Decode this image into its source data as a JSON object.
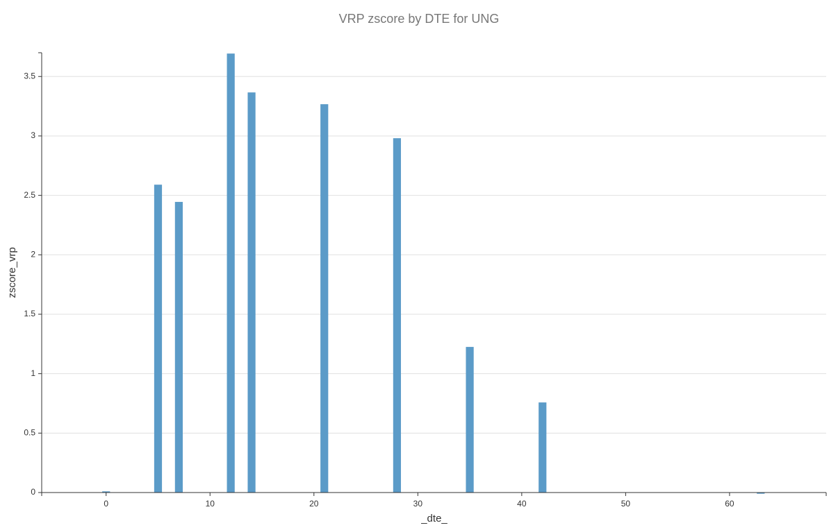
{
  "chart_data": {
    "type": "bar",
    "title": "VRP zscore by DTE for UNG",
    "x_label": "_dte_",
    "y_label": "zscore_vrp",
    "x": [
      0,
      5,
      7,
      12,
      14,
      21,
      28,
      35,
      42,
      63
    ],
    "values": [
      0.01,
      2.59,
      2.445,
      3.693,
      3.366,
      3.267,
      2.981,
      1.225,
      0.758,
      -0.01
    ],
    "color": "#5b9bc8",
    "xlim": [
      -6.2,
      69.3
    ],
    "xticks": [
      0,
      10,
      20,
      30,
      40,
      50,
      60
    ],
    "ylim": [
      0,
      3.7
    ],
    "yticks": [
      0,
      0.5,
      1,
      1.5,
      2,
      2.5,
      3,
      3.5
    ],
    "grid": true
  }
}
